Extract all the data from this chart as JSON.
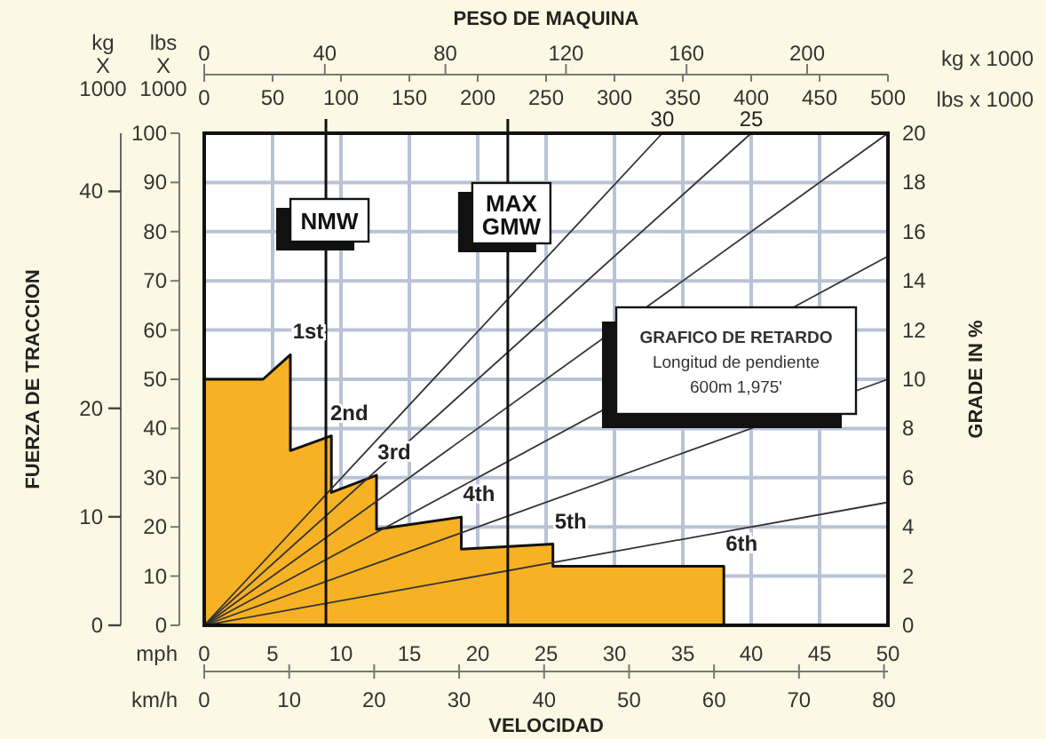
{
  "chart_data": {
    "type": "area",
    "xlabel": "VELOCIDAD",
    "ylabel": "FUERZA DE TRACCION",
    "y2label": "GRADE IN %",
    "x2label": "PESO DE MAQUINA",
    "xlim": [
      0,
      50
    ],
    "xticks": [
      0,
      5,
      10,
      15,
      20,
      25,
      30,
      35,
      40,
      45,
      50
    ],
    "x2lim": [
      0,
      500
    ],
    "x2ticks": [
      0,
      50,
      100,
      150,
      200,
      250,
      300,
      350,
      400,
      450,
      500
    ],
    "ylim": [
      0,
      100
    ],
    "yticks": [
      0,
      10,
      20,
      30,
      40,
      50,
      60,
      70,
      80,
      90,
      100
    ],
    "y2lim": [
      0,
      20
    ],
    "y2ticks": [
      0,
      2,
      4,
      6,
      8,
      10,
      12,
      14,
      16,
      18,
      20
    ],
    "y3lim": [
      0,
      45.36
    ],
    "y3ticks": [
      0,
      10,
      20,
      40
    ],
    "grid": true,
    "series": [
      {
        "color": "#f7b124",
        "x": [
          0,
          4.3,
          6.3,
          6.3,
          9.3,
          9.3,
          12.6,
          12.6,
          18.8,
          18.8,
          25.5,
          25.5,
          38,
          38
        ],
        "values": [
          50,
          50,
          55,
          35.5,
          38.5,
          27,
          30.5,
          19.5,
          22,
          15.5,
          16.5,
          12,
          12,
          0
        ]
      },
      {
        "type": "line",
        "color": "#333333",
        "x": [
          0,
          33.5
        ],
        "values": [
          0,
          100
        ]
      },
      {
        "type": "line",
        "color": "#333333",
        "x": [
          0,
          40
        ],
        "values": [
          0,
          100
        ]
      },
      {
        "type": "line",
        "color": "#333333",
        "x": [
          0,
          50
        ],
        "values": [
          0,
          100
        ]
      },
      {
        "type": "line",
        "color": "#333333",
        "x": [
          0,
          50
        ],
        "values": [
          0,
          75
        ]
      },
      {
        "type": "line",
        "color": "#333333",
        "x": [
          0,
          50
        ],
        "values": [
          0,
          50
        ]
      },
      {
        "type": "line",
        "color": "#333333",
        "x": [
          0,
          50
        ],
        "values": [
          0,
          25
        ]
      }
    ],
    "ref_lines": [
      {
        "axis": "x2",
        "value": 89,
        "label": "NMW"
      },
      {
        "axis": "x2",
        "value": 222,
        "label": "MAX GMW"
      }
    ],
    "annotations": [
      "kg X 1000",
      "lbs X 1000",
      "kg x 1000",
      "lbs x 1000",
      "mph",
      "km/h",
      "GRAFICO DE RETARDO",
      "Longitud de pendiente",
      "600m 1,975'",
      "0",
      "40",
      "80",
      "120",
      "160",
      "200",
      "0",
      "10",
      "20",
      "30",
      "40",
      "50",
      "60",
      "70",
      "80",
      {
        "text": "1st",
        "x": 6.3,
        "y": 55
      },
      {
        "text": "2nd",
        "x": 9.3,
        "y": 38.5
      },
      {
        "text": "3rd",
        "x": 12.6,
        "y": 30.5
      },
      {
        "text": "4th",
        "x": 18.8,
        "y": 22
      },
      {
        "text": "5th",
        "x": 25.5,
        "y": 16.5
      },
      {
        "text": "6th",
        "x": 38,
        "y": 12
      },
      {
        "text": "30",
        "x": 33.5,
        "y": 100
      },
      {
        "text": "25",
        "x": 40,
        "y": 100
      }
    ]
  }
}
